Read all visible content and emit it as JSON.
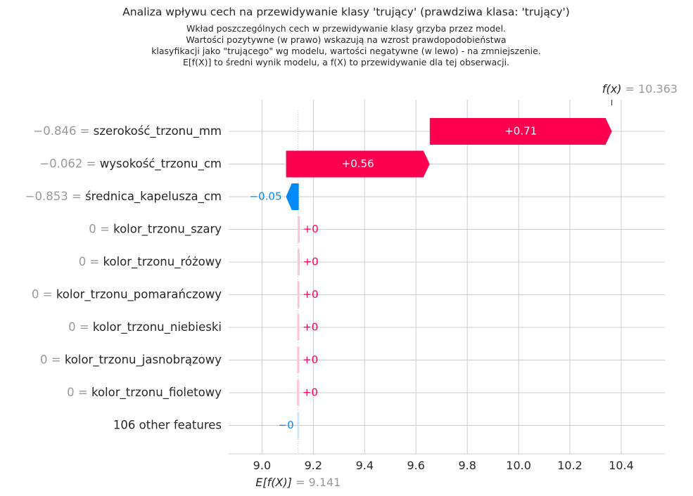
{
  "chart_data": {
    "type": "waterfall",
    "title": "Analiza wpływu cech na przewidywanie klasy 'trujący' (prawdziwa klasa: 'trujący')",
    "subtitle_lines": [
      "Wkład poszczególnych cech w przewidywanie klasy grzyba przez model.",
      "Wartości pozytywne (w prawo) wskazują na wzrost prawdopodobieństwa",
      "klasyfikacji jako \"trującego\" wg modelu, wartości negatywne (w lewo) - na zmniejszenie.",
      "E[f(X)] to średni wynik modelu, a f(X) to przewidywanie dla tej obserwacji."
    ],
    "base_value": 9.141,
    "base_label": "E[f(X)]",
    "base_value_text": "= 9.141",
    "prediction": 10.363,
    "prediction_label": "f(x)",
    "prediction_value_text": "= 10.363",
    "xlim": [
      8.87,
      10.57
    ],
    "xticks": [
      "9.0",
      "9.2",
      "9.4",
      "9.6",
      "9.8",
      "10.0",
      "10.2",
      "10.4"
    ],
    "xtick_values": [
      9.0,
      9.2,
      9.4,
      9.6,
      9.8,
      10.0,
      10.2,
      10.4
    ],
    "features": [
      {
        "value_text": "−0.846 =",
        "name": "szerokość_trzonu_mm",
        "contribution": 0.71,
        "label": "+0.71"
      },
      {
        "value_text": "−0.062 =",
        "name": "wysokość_trzonu_cm",
        "contribution": 0.56,
        "label": "+0.56"
      },
      {
        "value_text": "−0.853 =",
        "name": "średnica_kapelusza_cm",
        "contribution": -0.05,
        "label": "−0.05"
      },
      {
        "value_text": "0 =",
        "name": "kolor_trzonu_szary",
        "contribution": 0.0005,
        "label": "+0"
      },
      {
        "value_text": "0 =",
        "name": "kolor_trzonu_różowy",
        "contribution": 0.0005,
        "label": "+0"
      },
      {
        "value_text": "0 =",
        "name": "kolor_trzonu_pomarańczowy",
        "contribution": 0.0005,
        "label": "+0"
      },
      {
        "value_text": "0 =",
        "name": "kolor_trzonu_niebieski",
        "contribution": 0.0005,
        "label": "+0"
      },
      {
        "value_text": "0 =",
        "name": "kolor_trzonu_jasnobrązowy",
        "contribution": 0.0005,
        "label": "+0"
      },
      {
        "value_text": "0 =",
        "name": "kolor_trzonu_fioletowy",
        "contribution": 0.0005,
        "label": "+0"
      },
      {
        "value_text": "",
        "name": "106 other features",
        "contribution": -0.0005,
        "label": "−0"
      }
    ],
    "colors": {
      "positive": "#ff0051",
      "negative": "#008bfb",
      "positive_light": "#ffc3d5",
      "negative_light": "#d1e6fa",
      "grid": "#cccccc",
      "muted_text": "#999999",
      "text": "#262626"
    }
  }
}
